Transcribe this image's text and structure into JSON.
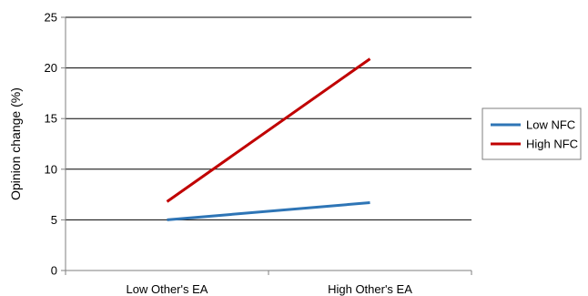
{
  "chart_data": {
    "type": "line",
    "title": "",
    "xlabel": "",
    "ylabel": "Opinion change (%)",
    "categories": [
      "Low Other's EA",
      "High Other's EA"
    ],
    "ylim": [
      0,
      25
    ],
    "yticks": [
      0,
      5,
      10,
      15,
      20,
      25
    ],
    "grid": true,
    "legend_position": "right",
    "series": [
      {
        "name": "Low NFC",
        "values": [
          5.0,
          6.7
        ],
        "color": "#2e75b6"
      },
      {
        "name": "High NFC",
        "values": [
          6.8,
          20.9
        ],
        "color": "#c00000"
      }
    ]
  }
}
